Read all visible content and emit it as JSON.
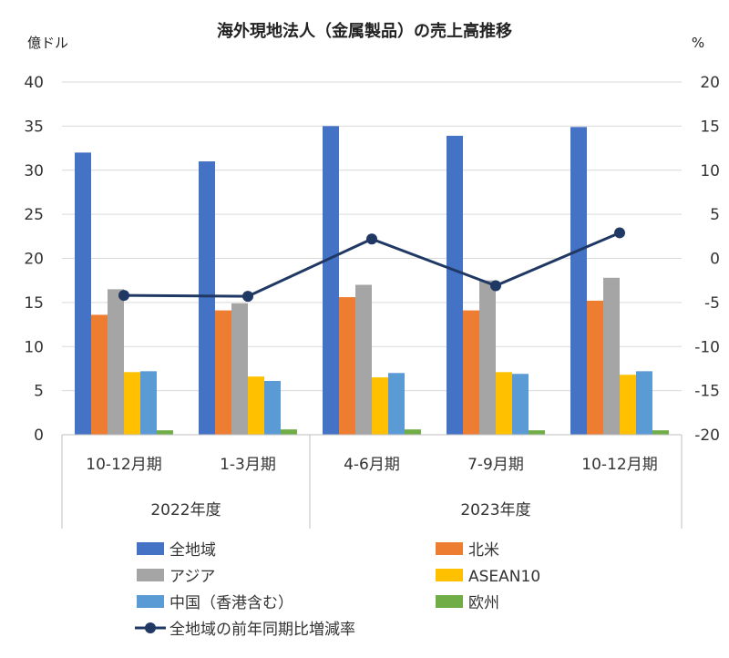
{
  "chart_data": {
    "type": "bar",
    "title": "海外現地法人（金属製品）の売上高推移",
    "left_unit": "億ドル",
    "right_unit": "%",
    "categories": [
      "10-12月期",
      "1-3月期",
      "4-6月期",
      "7-9月期",
      "10-12月期"
    ],
    "year_groups": [
      {
        "label": "2022年度",
        "span": 2
      },
      {
        "label": "2023年度",
        "span": 3
      }
    ],
    "ylim": [
      0,
      40
    ],
    "yticks": [
      0,
      5,
      10,
      15,
      20,
      25,
      30,
      35,
      40
    ],
    "y2lim": [
      -20,
      20
    ],
    "y2ticks": [
      -20,
      -15,
      -10,
      -5,
      0,
      5,
      10,
      15,
      20
    ],
    "grid": true,
    "series": [
      {
        "name": "全地域",
        "color": "#4472C4",
        "values": [
          32.0,
          31.0,
          35.0,
          33.9,
          34.9
        ]
      },
      {
        "name": "北米",
        "color": "#ED7D31",
        "values": [
          13.6,
          14.1,
          15.6,
          14.1,
          15.2
        ]
      },
      {
        "name": "アジア",
        "color": "#A5A5A5",
        "values": [
          16.5,
          14.9,
          17.0,
          17.5,
          17.8
        ]
      },
      {
        "name": "ASEAN10",
        "color": "#FFC000",
        "values": [
          7.1,
          6.6,
          6.5,
          7.1,
          6.8
        ]
      },
      {
        "name": "中国（香港含む）",
        "color": "#5B9BD5",
        "values": [
          7.2,
          6.1,
          7.0,
          6.9,
          7.2
        ]
      },
      {
        "name": "欧州",
        "color": "#70AD47",
        "values": [
          0.5,
          0.6,
          0.6,
          0.5,
          0.5
        ]
      }
    ],
    "line_series": {
      "name": "全地域の前年同期比増減率",
      "color": "#203864",
      "axis": "right",
      "values": [
        -4.2,
        -4.3,
        2.2,
        -3.1,
        2.9
      ]
    },
    "legend_position": "bottom"
  }
}
